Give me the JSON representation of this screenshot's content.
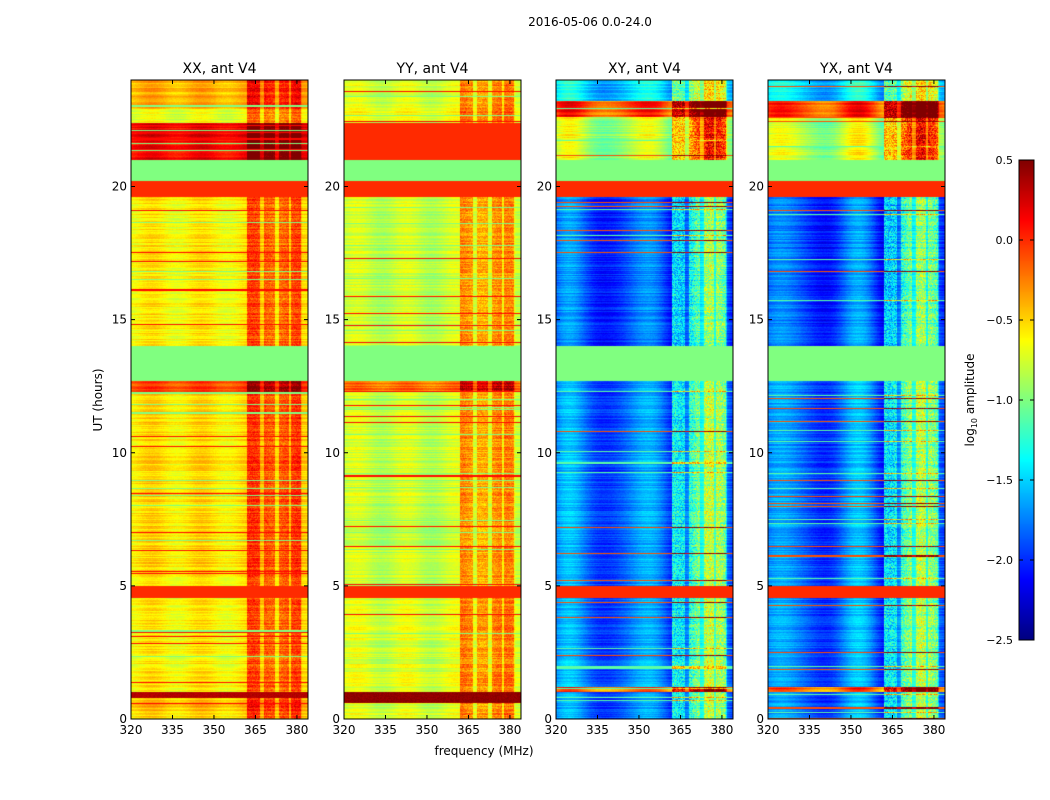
{
  "chart_data": {
    "type": "heatmap",
    "title": "2016-05-06 0.0-24.0",
    "xlabel": "frequency (MHz)",
    "ylabel": "UT (hours)",
    "xlim": [
      320,
      384
    ],
    "ylim": [
      0,
      24
    ],
    "xticks": [
      320,
      335,
      350,
      365,
      380
    ],
    "yticks": [
      0,
      5,
      10,
      15,
      20
    ],
    "colorbar": {
      "label_prefix": "log",
      "label_sub": "10",
      "label_suffix": " amplitude",
      "colormap": "jet",
      "range": [
        -2.5,
        0.5
      ],
      "ticks": [
        "0.5",
        "0.0",
        "−0.5",
        "−1.0",
        "−1.5",
        "−2.0",
        "−2.5"
      ],
      "tick_values": [
        0.5,
        0.0,
        -0.5,
        -1.0,
        -1.5,
        -2.0,
        -2.5
      ]
    },
    "rfi_channel_bands_mhz": [
      [
        362,
        366.5
      ],
      [
        368,
        372
      ],
      [
        373.5,
        377
      ],
      [
        378,
        381.5
      ]
    ],
    "panels": [
      {
        "title": "XX, ant V4",
        "kind": "auto",
        "segments": [
          [
            0,
            0.3,
            -0.55
          ],
          [
            0.3,
            0.8,
            -0.45
          ],
          [
            0.8,
            1.0,
            0.35
          ],
          [
            1.0,
            4.55,
            -0.6
          ],
          [
            4.55,
            5.0,
            0.0
          ],
          [
            5.0,
            12.3,
            -0.55
          ],
          [
            12.3,
            12.7,
            -0.05
          ],
          [
            12.7,
            14.0,
            -1.0
          ],
          [
            14.0,
            19.6,
            -0.6
          ],
          [
            19.6,
            20.2,
            0.0
          ],
          [
            20.2,
            21.0,
            -1.0
          ],
          [
            21.0,
            22.4,
            0.15
          ],
          [
            22.4,
            22.9,
            -0.7
          ],
          [
            22.9,
            24.0,
            -0.4
          ]
        ]
      },
      {
        "title": "YY, ant V4",
        "kind": "auto",
        "segments": [
          [
            0,
            0.6,
            -0.75
          ],
          [
            0.6,
            1.0,
            0.45
          ],
          [
            1.0,
            4.55,
            -0.75
          ],
          [
            4.55,
            5.0,
            0.0
          ],
          [
            5.0,
            12.3,
            -0.8
          ],
          [
            12.3,
            12.7,
            -0.2
          ],
          [
            12.7,
            14.0,
            -1.0
          ],
          [
            14.0,
            19.6,
            -0.8
          ],
          [
            19.6,
            20.2,
            0.0
          ],
          [
            20.2,
            21.0,
            -1.0
          ],
          [
            21.0,
            22.4,
            0.0
          ],
          [
            22.4,
            22.9,
            -0.7
          ],
          [
            22.9,
            24.0,
            -0.75
          ]
        ]
      },
      {
        "title": "XY, ant V4",
        "kind": "cross",
        "segments": [
          [
            0,
            1.0,
            -1.8
          ],
          [
            1.0,
            1.2,
            -0.2
          ],
          [
            1.2,
            4.55,
            -1.8
          ],
          [
            4.55,
            5.0,
            0.0
          ],
          [
            5.0,
            12.7,
            -1.8
          ],
          [
            12.7,
            14.0,
            -1.0
          ],
          [
            14.0,
            19.6,
            -1.9
          ],
          [
            19.6,
            20.2,
            0.0
          ],
          [
            20.2,
            21.0,
            -1.0
          ],
          [
            21.0,
            22.6,
            -0.85
          ],
          [
            22.6,
            23.2,
            -0.1
          ],
          [
            23.2,
            24.0,
            -1.5
          ]
        ]
      },
      {
        "title": "YX, ant V4",
        "kind": "cross",
        "segments": [
          [
            0,
            1.0,
            -1.8
          ],
          [
            1.0,
            1.2,
            -0.2
          ],
          [
            1.2,
            4.55,
            -1.8
          ],
          [
            4.55,
            5.0,
            0.0
          ],
          [
            5.0,
            12.7,
            -1.8
          ],
          [
            12.7,
            14.0,
            -1.0
          ],
          [
            14.0,
            19.6,
            -1.9
          ],
          [
            19.6,
            20.2,
            0.0
          ],
          [
            20.2,
            21.0,
            -1.0
          ],
          [
            21.0,
            22.6,
            -0.85
          ],
          [
            22.6,
            23.2,
            -0.1
          ],
          [
            23.2,
            24.0,
            -1.5
          ]
        ]
      }
    ]
  }
}
